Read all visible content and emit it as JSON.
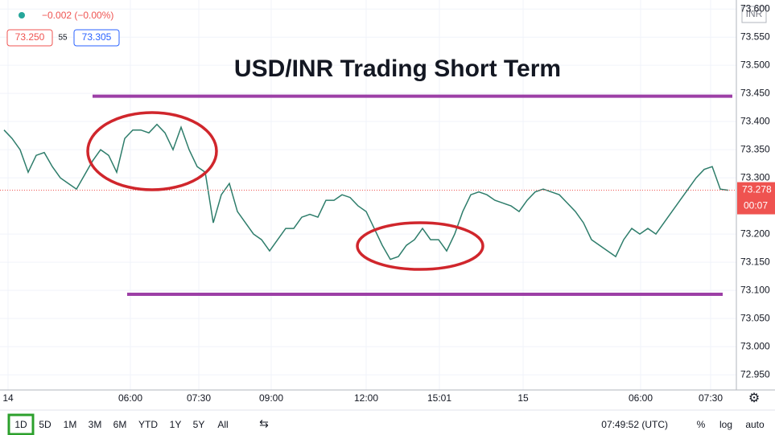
{
  "header": {
    "change": "−0.002 (−0.00%)",
    "bid": "73.250",
    "spread": "55",
    "ask": "73.305",
    "currency": "INR"
  },
  "toolbar": {
    "ranges": [
      "1D",
      "5D",
      "1M",
      "3M",
      "6M",
      "YTD",
      "1Y",
      "5Y",
      "All"
    ],
    "time": "07:49:52 (UTC)",
    "options": [
      "%",
      "log",
      "auto"
    ]
  },
  "chart_data": {
    "type": "line",
    "title": "USD/INR Trading Short Term",
    "color": "#2e7d6b",
    "x": [
      0,
      1,
      2,
      3,
      4,
      5,
      6,
      7,
      8,
      9,
      10,
      11,
      12,
      13,
      14,
      15,
      16,
      17,
      18,
      19,
      20,
      21,
      22,
      23,
      24,
      25,
      26,
      27,
      28,
      29,
      30,
      31,
      32,
      33,
      34,
      35,
      36,
      37,
      38,
      39,
      40,
      41,
      42,
      43,
      44,
      45,
      46,
      47,
      48,
      49,
      50,
      51,
      52,
      53,
      54,
      55,
      56,
      57,
      58,
      59,
      60,
      61,
      62,
      63,
      64,
      65,
      66,
      67,
      68,
      69,
      70,
      71,
      72,
      73,
      74,
      75,
      76,
      77,
      78,
      79,
      80,
      81,
      82,
      83,
      84,
      85,
      86,
      87,
      88,
      89,
      90
    ],
    "values": [
      73.385,
      73.37,
      73.35,
      73.31,
      73.34,
      73.345,
      73.32,
      73.3,
      73.29,
      73.28,
      73.305,
      73.33,
      73.35,
      73.34,
      73.31,
      73.37,
      73.385,
      73.385,
      73.38,
      73.395,
      73.38,
      73.35,
      73.39,
      73.35,
      73.32,
      73.31,
      73.22,
      73.27,
      73.29,
      73.24,
      73.22,
      73.2,
      73.19,
      73.17,
      73.19,
      73.21,
      73.21,
      73.23,
      73.235,
      73.23,
      73.26,
      73.26,
      73.27,
      73.265,
      73.25,
      73.24,
      73.21,
      73.18,
      73.155,
      73.16,
      73.18,
      73.19,
      73.21,
      73.19,
      73.19,
      73.17,
      73.2,
      73.24,
      73.27,
      73.275,
      73.27,
      73.26,
      73.255,
      73.25,
      73.24,
      73.26,
      73.275,
      73.28,
      73.275,
      73.27,
      73.255,
      73.24,
      73.22,
      73.19,
      73.18,
      73.17,
      73.16,
      73.19,
      73.21,
      73.2,
      73.21,
      73.2,
      73.22,
      73.24,
      73.26,
      73.28,
      73.3,
      73.315,
      73.32,
      73.28,
      73.278
    ],
    "xlim": [
      -0.5,
      90.5
    ],
    "xticks": [
      {
        "value": 0.5,
        "label": "14"
      },
      {
        "value": 15.7,
        "label": "06:00"
      },
      {
        "value": 24.2,
        "label": "07:30"
      },
      {
        "value": 33.2,
        "label": "09:00"
      },
      {
        "value": 45,
        "label": "12:00"
      },
      {
        "value": 54.1,
        "label": "15:01"
      },
      {
        "value": 64.5,
        "label": "15"
      },
      {
        "value": 79.1,
        "label": "06:00"
      },
      {
        "value": 87.8,
        "label": "07:30"
      }
    ],
    "ylim": [
      72.923,
      73.616
    ],
    "yticks": [
      {
        "value": 73.6,
        "label": "73.600"
      },
      {
        "value": 73.55,
        "label": "73.550"
      },
      {
        "value": 73.5,
        "label": "73.500"
      },
      {
        "value": 73.45,
        "label": "73.450"
      },
      {
        "value": 73.4,
        "label": "73.400"
      },
      {
        "value": 73.35,
        "label": "73.350"
      },
      {
        "value": 73.3,
        "label": "73.300"
      },
      {
        "value": 73.2,
        "label": "73.200"
      },
      {
        "value": 73.15,
        "label": "73.150"
      },
      {
        "value": 73.1,
        "label": "73.100"
      },
      {
        "value": 73.05,
        "label": "73.050"
      },
      {
        "value": 73.0,
        "label": "73.000"
      },
      {
        "value": 72.95,
        "label": "72.950"
      }
    ],
    "last": 73.278,
    "countdown": "00:07",
    "levels": [
      73.445,
      73.093
    ],
    "grid": true
  }
}
